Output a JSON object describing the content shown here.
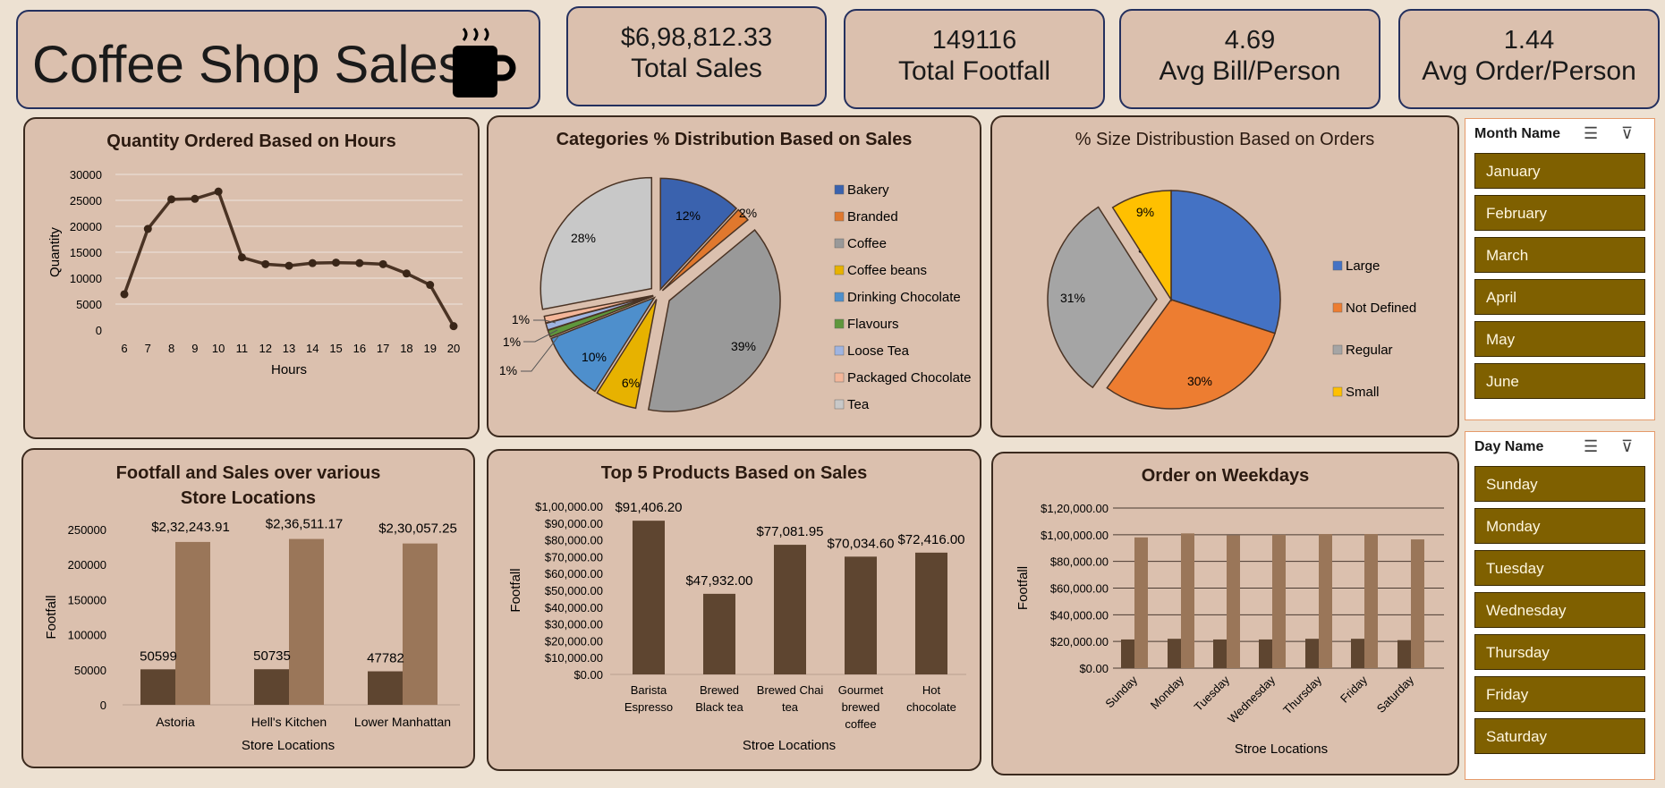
{
  "header": {
    "title": "Coffee Shop Sales",
    "icon": "coffee-cup-icon"
  },
  "kpis": [
    {
      "value": "$6,98,812.33",
      "label": "Total Sales"
    },
    {
      "value": "149116",
      "label": "Total Footfall"
    },
    {
      "value": "4.69",
      "label": "Avg Bill/Person"
    },
    {
      "value": "1.44",
      "label": "Avg Order/Person"
    }
  ],
  "colors": {
    "panel_bg": "#dbc0ae",
    "page_bg": "#ede1d2",
    "dark_bar": "#5e4530",
    "light_bar": "#9a7659",
    "slicer_item": "#7f6000"
  },
  "slicers": {
    "month": {
      "title": "Month Name",
      "items": [
        "January",
        "February",
        "March",
        "April",
        "May",
        "June"
      ]
    },
    "day": {
      "title": "Day Name",
      "items": [
        "Sunday",
        "Monday",
        "Tuesday",
        "Wednesday",
        "Thursday",
        "Friday",
        "Saturday"
      ]
    }
  },
  "chart_data": [
    {
      "type": "line",
      "title": "Quantity Ordered Based on Hours",
      "xlabel": "Hours",
      "ylabel": "Quantity",
      "x": [
        6,
        7,
        8,
        9,
        10,
        11,
        12,
        13,
        14,
        15,
        16,
        17,
        18,
        19,
        20
      ],
      "values": [
        6900,
        19500,
        25200,
        25300,
        26700,
        14000,
        12700,
        12400,
        12900,
        13000,
        12900,
        12700,
        10900,
        8700,
        750
      ],
      "ylim": [
        0,
        30000
      ],
      "yticks": [
        "0",
        "5000",
        "10000",
        "15000",
        "20000",
        "25000",
        "30000"
      ],
      "grid": true
    },
    {
      "type": "pie",
      "title": "Categories % Distribution Based on Sales",
      "legend_position": "right",
      "slices": [
        {
          "label": "Bakery",
          "value": 12,
          "text": "12%",
          "color": "#3a62ae"
        },
        {
          "label": "Branded",
          "value": 2,
          "text": "2%",
          "color": "#e0782d"
        },
        {
          "label": "Coffee",
          "value": 39,
          "text": "39%",
          "color": "#999999"
        },
        {
          "label": "Coffee beans",
          "value": 6,
          "text": "6%",
          "color": "#e7b200"
        },
        {
          "label": "Drinking Chocolate",
          "value": 10,
          "text": "10%",
          "color": "#4e8fcc"
        },
        {
          "label": "Flavours",
          "value": 1,
          "text": "1%",
          "color": "#5e973c"
        },
        {
          "label": "Loose Tea",
          "value": 1,
          "text": "1%",
          "color": "#9fb4e0"
        },
        {
          "label": "Packaged Chocolate",
          "value": 1,
          "text": "1%",
          "color": "#f4b699"
        },
        {
          "label": "Tea",
          "value": 28,
          "text": "28%",
          "color": "#c8c8c8"
        }
      ]
    },
    {
      "type": "pie",
      "title": "% Size Distribustion Based on Orders",
      "legend_position": "right",
      "slices": [
        {
          "label": "Large",
          "value": 30,
          "text": "30%",
          "color": "#4472c4"
        },
        {
          "label": "Not Defined",
          "value": 30,
          "text": "30%",
          "color": "#ed7d31"
        },
        {
          "label": "Regular",
          "value": 31,
          "text": "31%",
          "color": "#a5a5a5"
        },
        {
          "label": "Small",
          "value": 9,
          "text": "9%",
          "color": "#ffc000"
        }
      ]
    },
    {
      "type": "bar",
      "title": "Footfall and Sales over various Store Locations",
      "xlabel": "Store Locations",
      "ylabel": "Footfall",
      "categories": [
        "Astoria",
        "Hell's Kitchen",
        "Lower Manhattan"
      ],
      "series": [
        {
          "values": [
            50599,
            50735,
            47782
          ],
          "labels": [
            "50599",
            "50735",
            "47782"
          ]
        },
        {
          "values": [
            232243.91,
            236511.17,
            230057.25
          ],
          "labels": [
            "$2,32,243.91",
            "$2,36,511.17",
            "$2,30,057.25"
          ]
        }
      ],
      "ylim": [
        0,
        250000
      ],
      "yticks": [
        "0",
        "50000",
        "100000",
        "150000",
        "200000",
        "250000"
      ]
    },
    {
      "type": "bar",
      "title": "Top 5 Products Based on Sales",
      "xlabel": "Stroe Locations",
      "ylabel": "Footfall",
      "categories": [
        [
          "Barista",
          "Espresso"
        ],
        [
          "Brewed",
          "Black tea"
        ],
        [
          "Brewed Chai",
          "tea"
        ],
        [
          "Gourmet",
          "brewed",
          "coffee"
        ],
        [
          "Hot",
          "chocolate"
        ]
      ],
      "values": [
        91406.2,
        47932.0,
        77081.95,
        70034.6,
        72416.0
      ],
      "labels": [
        "$91,406.20",
        "$47,932.00",
        "$77,081.95",
        "$70,034.60",
        "$72,416.00"
      ],
      "ylim": [
        0,
        100000
      ],
      "yticks": [
        "$0.00",
        "$10,000.00",
        "$20,000.00",
        "$30,000.00",
        "$40,000.00",
        "$50,000.00",
        "$60,000.00",
        "$70,000.00",
        "$80,000.00",
        "$90,000.00",
        "$1,00,000.00"
      ]
    },
    {
      "type": "bar",
      "title": "Order on Weekdays",
      "xlabel": "Stroe Locations",
      "ylabel": "Footfall",
      "categories": [
        "Sunday",
        "Monday",
        "Tuesday",
        "Wednesday",
        "Thursday",
        "Friday",
        "Saturday"
      ],
      "series": [
        {
          "values": [
            21500,
            22000,
            21500,
            21500,
            22000,
            22000,
            21000
          ]
        },
        {
          "values": [
            98000,
            101000,
            99500,
            100000,
            100500,
            100500,
            96500
          ]
        }
      ],
      "ylim": [
        0,
        120000
      ],
      "yticks": [
        "$0.00",
        "$20,000.00",
        "$40,000.00",
        "$60,000.00",
        "$80,000.00",
        "$1,00,000.00",
        "$1,20,000.00"
      ],
      "grid": true
    }
  ]
}
